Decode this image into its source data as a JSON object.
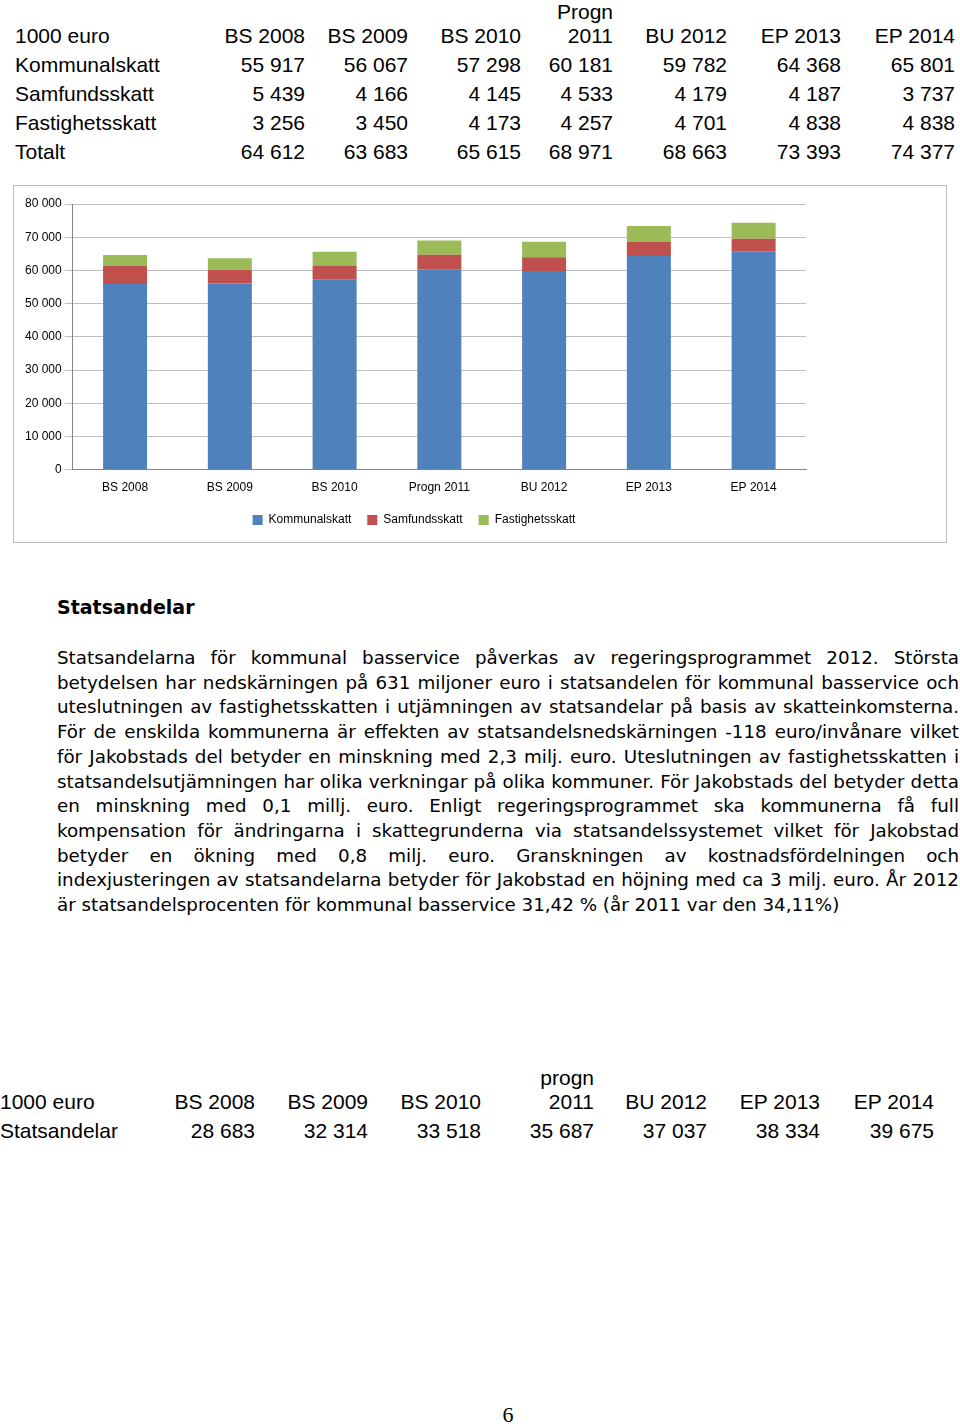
{
  "table1": {
    "header": [
      "1000 euro",
      "BS 2008",
      "BS 2009",
      "BS 2010",
      "Progn\n2011",
      "BU 2012",
      "EP 2013",
      "EP 2014"
    ],
    "rows": [
      [
        "Kommunalskatt",
        "55 917",
        "56 067",
        "57 298",
        "60 181",
        "59 782",
        "64 368",
        "65 801"
      ],
      [
        "Samfundsskatt",
        "5 439",
        "4 166",
        "4 145",
        "4 533",
        "4 179",
        "4 187",
        "3 737"
      ],
      [
        "Fastighetsskatt",
        "3 256",
        "3 450",
        "4 173",
        "4 257",
        "4 701",
        "4 838",
        "4 838"
      ],
      [
        "Totalt",
        "64 612",
        "63 683",
        "65 615",
        "68 971",
        "68 663",
        "73 393",
        "74 377"
      ]
    ]
  },
  "chart_data": {
    "type": "bar",
    "stacked": true,
    "categories": [
      "BS 2008",
      "BS 2009",
      "BS 2010",
      "Progn 2011",
      "BU 2012",
      "EP 2013",
      "EP 2014"
    ],
    "series": [
      {
        "name": "Kommunalskatt",
        "color": "#4f81bd",
        "values": [
          55917,
          56067,
          57298,
          60181,
          59782,
          64368,
          65801
        ]
      },
      {
        "name": "Samfundsskatt",
        "color": "#c0504d",
        "values": [
          5439,
          4166,
          4145,
          4533,
          4179,
          4187,
          3737
        ]
      },
      {
        "name": "Fastighetsskatt",
        "color": "#9bbb59",
        "values": [
          3256,
          3450,
          4173,
          4257,
          4701,
          4838,
          4838
        ]
      }
    ],
    "ylim": [
      0,
      80000
    ],
    "yticks": [
      0,
      {
        "value": 10000,
        "label": "10 000"
      },
      {
        "value": 20000,
        "label": "20 000"
      },
      {
        "value": 30000,
        "label": "30 000"
      },
      {
        "value": 40000,
        "label": "40 000"
      },
      {
        "value": 50000,
        "label": "50 000"
      },
      {
        "value": 60000,
        "label": "60 000"
      },
      {
        "value": 70000,
        "label": "70 000"
      },
      {
        "value": 80000,
        "label": "80 000"
      }
    ],
    "grid": true,
    "legend": "bottom"
  },
  "section": {
    "heading": "Statsandelar",
    "paragraph": "Statsandelarna för kommunal basservice påverkas av regeringsprogrammet 2012. Största betydelsen har nedskärningen på 631 miljoner euro i statsandelen för kommunal basservice och uteslutningen av fastighetsskatten i utjämningen av statsandelar på basis av skatteinkomsterna. För de enskilda kommunerna är effekten av statsandelsnedskärningen -118 euro/invånare vilket för Jakobstads del betyder en minskning med 2,3 milj. euro. Uteslutningen av fastighetsskatten i statsandelsutjämningen har olika verkningar på olika kommuner. För Jakobstads del betyder detta en minskning med 0,1 millj. euro. Enligt regeringsprogrammet ska kommunerna få full kompensation för ändringarna i skattegrunderna via statsandelssystemet vilket för Jakobstad betyder en ökning med 0,8 milj. euro. Granskningen av kostnadsfördelningen och indexjusteringen av statsandelarna betyder för Jakobstad en höjning med ca 3 milj. euro. År 2012 är statsandelsprocenten för kommunal basservice 31,42 % (år 2011 var den 34,11%)"
  },
  "table2": {
    "header": [
      "1000 euro",
      "BS 2008",
      "BS 2009",
      "BS 2010",
      "progn\n2011",
      "BU 2012",
      "EP 2013",
      "EP 2014"
    ],
    "rows": [
      [
        "Statsandelar",
        "28 683",
        "32 314",
        "33 518",
        "35 687",
        "37 037",
        "38 334",
        "39 675"
      ]
    ]
  },
  "page_number": "6"
}
